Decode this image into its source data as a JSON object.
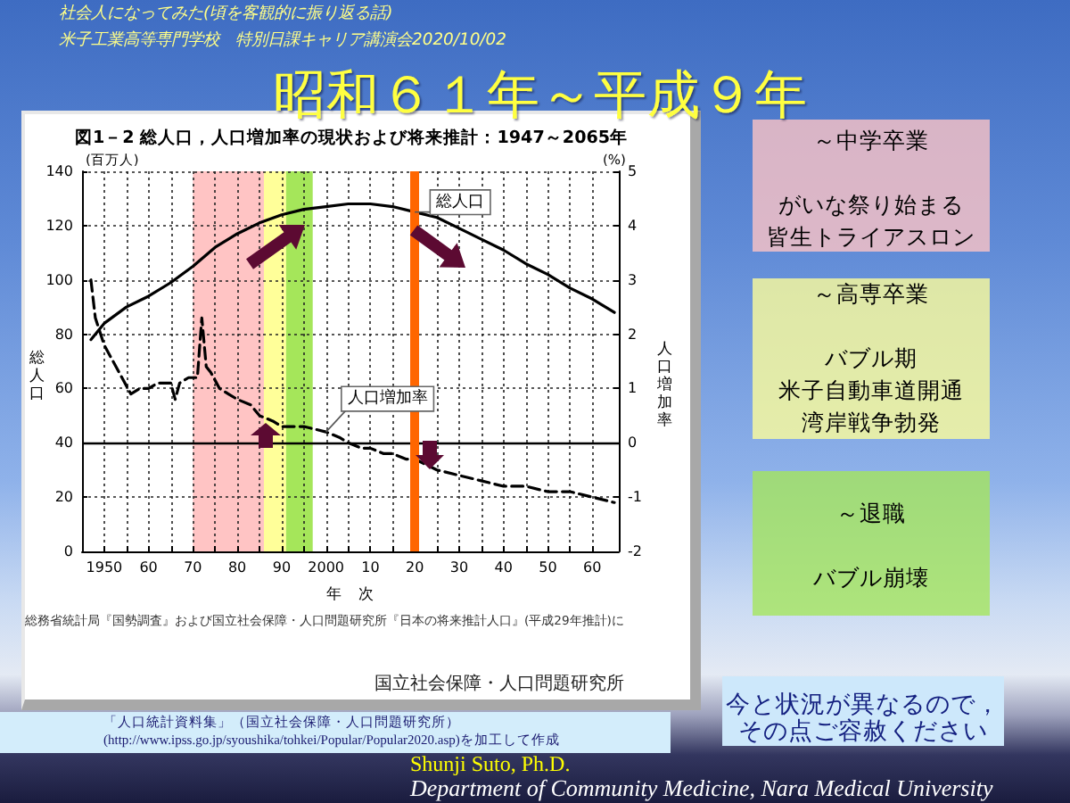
{
  "chart_data": {
    "type": "line",
    "title": "昭和６１年～平成９年",
    "subtitle": "図1－2 総人口，人口増加率の現状および将来推計：1947～2065年",
    "xlabel": "年　次",
    "ylabel": "総人口",
    "y2label": "人口増加率",
    "xlim": [
      1945,
      2066
    ],
    "xticks": [
      {
        "value": 1950,
        "label": "1950"
      },
      {
        "value": 1955,
        "label": null
      },
      {
        "value": 1960,
        "label": "60"
      },
      {
        "value": 1965,
        "label": null
      },
      {
        "value": 1970,
        "label": "70"
      },
      {
        "value": 1975,
        "label": null
      },
      {
        "value": 1980,
        "label": "80"
      },
      {
        "value": 1985,
        "label": null
      },
      {
        "value": 1990,
        "label": "90"
      },
      {
        "value": 1995,
        "label": null
      },
      {
        "value": 2000,
        "label": "2000"
      },
      {
        "value": 2005,
        "label": null
      },
      {
        "value": 2010,
        "label": "10"
      },
      {
        "value": 2015,
        "label": null
      },
      {
        "value": 2020,
        "label": "20"
      },
      {
        "value": 2025,
        "label": null
      },
      {
        "value": 2030,
        "label": "30"
      },
      {
        "value": 2035,
        "label": null
      },
      {
        "value": 2040,
        "label": "40"
      },
      {
        "value": 2045,
        "label": null
      },
      {
        "value": 2050,
        "label": "50"
      },
      {
        "value": 2055,
        "label": null
      },
      {
        "value": 2060,
        "label": "60"
      }
    ],
    "ylim": [
      0,
      140
    ],
    "yticks": [
      0,
      20,
      40,
      60,
      80,
      100,
      120,
      140
    ],
    "y2lim": [
      -2,
      5
    ],
    "y2ticks": [
      -2,
      -1,
      0,
      1,
      2,
      3,
      4,
      5
    ],
    "grid": true,
    "series": [
      {
        "name": "総人口",
        "color": "#000000",
        "x": [
          1947,
          1950,
          1955,
          1960,
          1965,
          1970,
          1975,
          1980,
          1985,
          1990,
          1995,
          2000,
          2005,
          2010,
          2015,
          2020,
          2025,
          2030,
          2035,
          2040,
          2045,
          2050,
          2055,
          2060,
          2065
        ],
        "values": [
          78,
          84,
          90,
          94,
          99,
          105,
          112,
          117,
          121,
          124,
          126,
          127,
          128,
          128,
          127,
          125,
          123,
          119,
          115,
          111,
          106,
          102,
          97,
          93,
          88
        ]
      },
      {
        "name": "人口増加率",
        "color": "#000000",
        "axis": "y2",
        "line_style": "dashed",
        "x": [
          1947,
          1948,
          1950,
          1952,
          1954,
          1956,
          1958,
          1960,
          1962,
          1964,
          1965,
          1966,
          1967,
          1969,
          1971,
          1972,
          1973,
          1974,
          1976,
          1978,
          1980,
          1983,
          1985,
          1988,
          1990,
          1993,
          1995,
          2000,
          2003,
          2005,
          2008,
          2010,
          2013,
          2015,
          2018,
          2020,
          2025,
          2030,
          2035,
          2040,
          2045,
          2050,
          2055,
          2060,
          2065
        ],
        "values": [
          3.0,
          2.3,
          1.8,
          1.5,
          1.2,
          0.9,
          1.0,
          1.0,
          1.1,
          1.1,
          1.1,
          0.8,
          1.1,
          1.2,
          1.2,
          2.3,
          1.4,
          1.3,
          1.0,
          0.9,
          0.8,
          0.7,
          0.5,
          0.4,
          0.3,
          0.3,
          0.3,
          0.2,
          0.1,
          0.0,
          -0.1,
          -0.1,
          -0.2,
          -0.2,
          -0.3,
          -0.3,
          -0.5,
          -0.6,
          -0.7,
          -0.8,
          -0.8,
          -0.9,
          -0.9,
          -1.0,
          -1.1
        ]
      }
    ],
    "ref_lines": [
      {
        "axis": "x",
        "value": 2020,
        "color": "#ff6600"
      },
      {
        "axis": "y2",
        "value": 0,
        "color": "#000000"
      }
    ],
    "bands": [
      {
        "axis": "x",
        "from": 1970,
        "to": 1986,
        "color": "#ffc4c4"
      },
      {
        "axis": "x",
        "from": 1986,
        "to": 1991,
        "color": "#ffff99"
      },
      {
        "axis": "x",
        "from": 1991,
        "to": 1997,
        "color": "#a5e65a"
      }
    ],
    "annotations": [
      "社会人になってみた(頃を客観的に振り返る話)",
      "米子工業高等専門学校　特別日課キャリア講演会2020/10/02",
      "(百万人)",
      "(%)",
      "～中学卒業",
      "がいな祭り始まる",
      "皆生トライアスロン",
      "～高専卒業",
      "バブル期",
      "米子自動車道開通",
      "湾岸戦争勃発",
      "～退職",
      "バブル崩壊",
      "総務省統計局『国勢調査』および国立社会保障・人口問題研究所『日本の将来推計人口』(平成29年推計)に",
      "国立社会保障・人口問題研究所",
      "「人口統計資料集」（国立社会保障・人口問題研究所）\n(http://www.ipss.go.jp/syoushika/tohkei/Popular/Popular2020.asp)を加工して作成",
      "今と状況が異なるので，",
      "その点ご容赦ください",
      "Shunji Suto, Ph.D.",
      "Department of Community Medicine, Nara Medical University"
    ]
  }
}
